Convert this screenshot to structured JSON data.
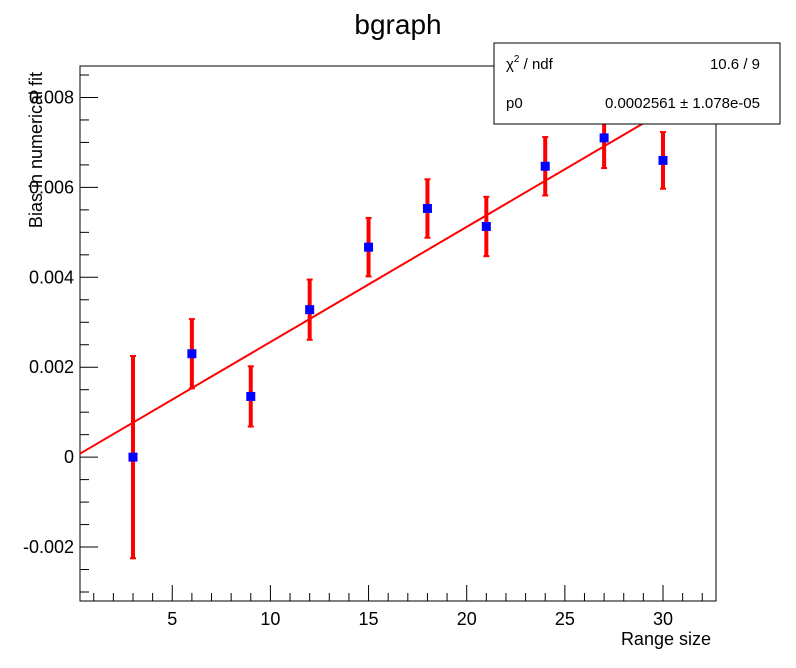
{
  "chart_data": {
    "type": "scatter",
    "title": "bgraph",
    "xlabel": "Range size",
    "ylabel": "Bias in numerical fit",
    "xlim": [
      0.3,
      32.7
    ],
    "ylim": [
      -0.0032,
      0.0087
    ],
    "xticks": [
      5,
      10,
      15,
      20,
      25,
      30
    ],
    "xtick_labels": [
      "5",
      "10",
      "15",
      "20",
      "25",
      "30"
    ],
    "yticks": [
      -0.002,
      0,
      0.002,
      0.004,
      0.006,
      0.008
    ],
    "ytick_labels": [
      "-0.002",
      "0",
      "0.002",
      "0.004",
      "0.006",
      "0.008"
    ],
    "grid": false,
    "series": [
      {
        "x": [
          3,
          6,
          9,
          12,
          15,
          18,
          21,
          24,
          27,
          30
        ],
        "y": [
          0.0,
          0.0023,
          0.00135,
          0.00328,
          0.00467,
          0.00553,
          0.00513,
          0.00647,
          0.0071,
          0.0066
        ],
        "yerr": [
          0.00225,
          0.00077,
          0.00067,
          0.00067,
          0.00065,
          0.00065,
          0.00066,
          0.00065,
          0.00067,
          0.00063
        ],
        "marker_color": "#0000ff",
        "error_color": "#ff0000"
      }
    ],
    "fit": {
      "type": "linear-through-origin",
      "slope": 0.0002561,
      "color": "#ff0000"
    },
    "stats_box": {
      "chi2_label": "χ",
      "chi2_sup": "2",
      "chi2_suffix": " / ndf",
      "chi2_value": "10.6 / 9",
      "p0_label": "p0",
      "p0_value": "0.0002561 ± 1.078e-05"
    }
  }
}
